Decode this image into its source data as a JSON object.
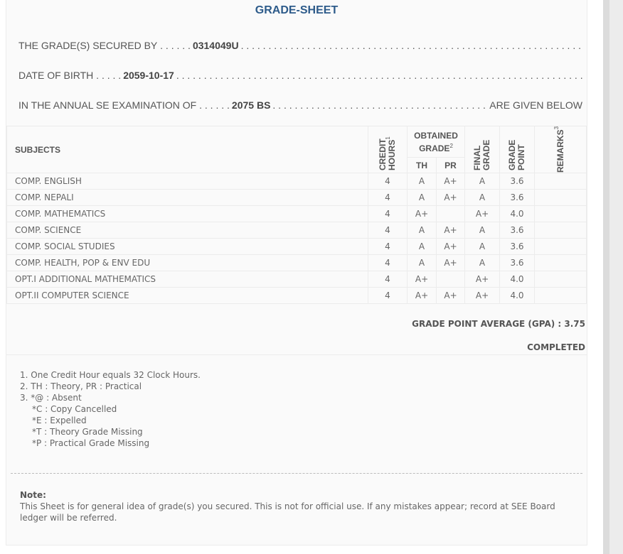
{
  "title": "GRADE-SHEET",
  "info": {
    "secured_by_label": "THE GRADE(S) SECURED BY",
    "symbol_no": "0314049U",
    "dob_label": "DATE OF BIRTH",
    "dob": "2059-10-17",
    "exam_label": "IN THE ANNUAL SE EXAMINATION OF",
    "exam_year": "2075 BS",
    "exam_suffix": "ARE GIVEN BELOW"
  },
  "table": {
    "headers": {
      "subjects": "SUBJECTS",
      "credit": "CREDIT HOURS",
      "credit_sup": "1",
      "obtained": "OBTAINED GRADE",
      "obtained_sup": "2",
      "th": "TH",
      "pr": "PR",
      "final": "FINAL GRADE",
      "gp": "GRADE POINT",
      "remarks": "REMARKS",
      "remarks_sup": "3"
    },
    "rows": [
      {
        "subject": "COMP. ENGLISH",
        "credit": "4",
        "th": "A",
        "pr": "A+",
        "final": "A",
        "gp": "3.6",
        "remarks": ""
      },
      {
        "subject": "COMP. NEPALI",
        "credit": "4",
        "th": "A",
        "pr": "A+",
        "final": "A",
        "gp": "3.6",
        "remarks": ""
      },
      {
        "subject": "COMP. MATHEMATICS",
        "credit": "4",
        "th": "A+",
        "pr": "",
        "final": "A+",
        "gp": "4.0",
        "remarks": ""
      },
      {
        "subject": "COMP. SCIENCE",
        "credit": "4",
        "th": "A",
        "pr": "A+",
        "final": "A",
        "gp": "3.6",
        "remarks": ""
      },
      {
        "subject": "COMP. SOCIAL STUDIES",
        "credit": "4",
        "th": "A",
        "pr": "A+",
        "final": "A",
        "gp": "3.6",
        "remarks": ""
      },
      {
        "subject": "COMP. HEALTH, POP & ENV EDU",
        "credit": "4",
        "th": "A",
        "pr": "A+",
        "final": "A",
        "gp": "3.6",
        "remarks": ""
      },
      {
        "subject": "OPT.I ADDITIONAL MATHEMATICS",
        "credit": "4",
        "th": "A+",
        "pr": "",
        "final": "A+",
        "gp": "4.0",
        "remarks": ""
      },
      {
        "subject": "OPT.II COMPUTER SCIENCE",
        "credit": "4",
        "th": "A+",
        "pr": "A+",
        "final": "A+",
        "gp": "4.0",
        "remarks": ""
      }
    ]
  },
  "gpa": "GRADE POINT AVERAGE (GPA) : 3.75",
  "status": "COMPLETED",
  "footnotes": [
    "1. One Credit Hour equals 32 Clock Hours.",
    "2. TH : Theory, PR : Practical",
    "3. *@ : Absent"
  ],
  "footnote_codes": [
    "*C : Copy Cancelled",
    "*E : Expelled",
    "*T : Theory Grade Missing",
    "*P : Practical Grade Missing"
  ],
  "note": {
    "label": "Note:",
    "text": "This Sheet is for general idea of grade(s) you secured. This is not for official use. If any mistakes appear; record at SEE Board ledger will be referred."
  }
}
